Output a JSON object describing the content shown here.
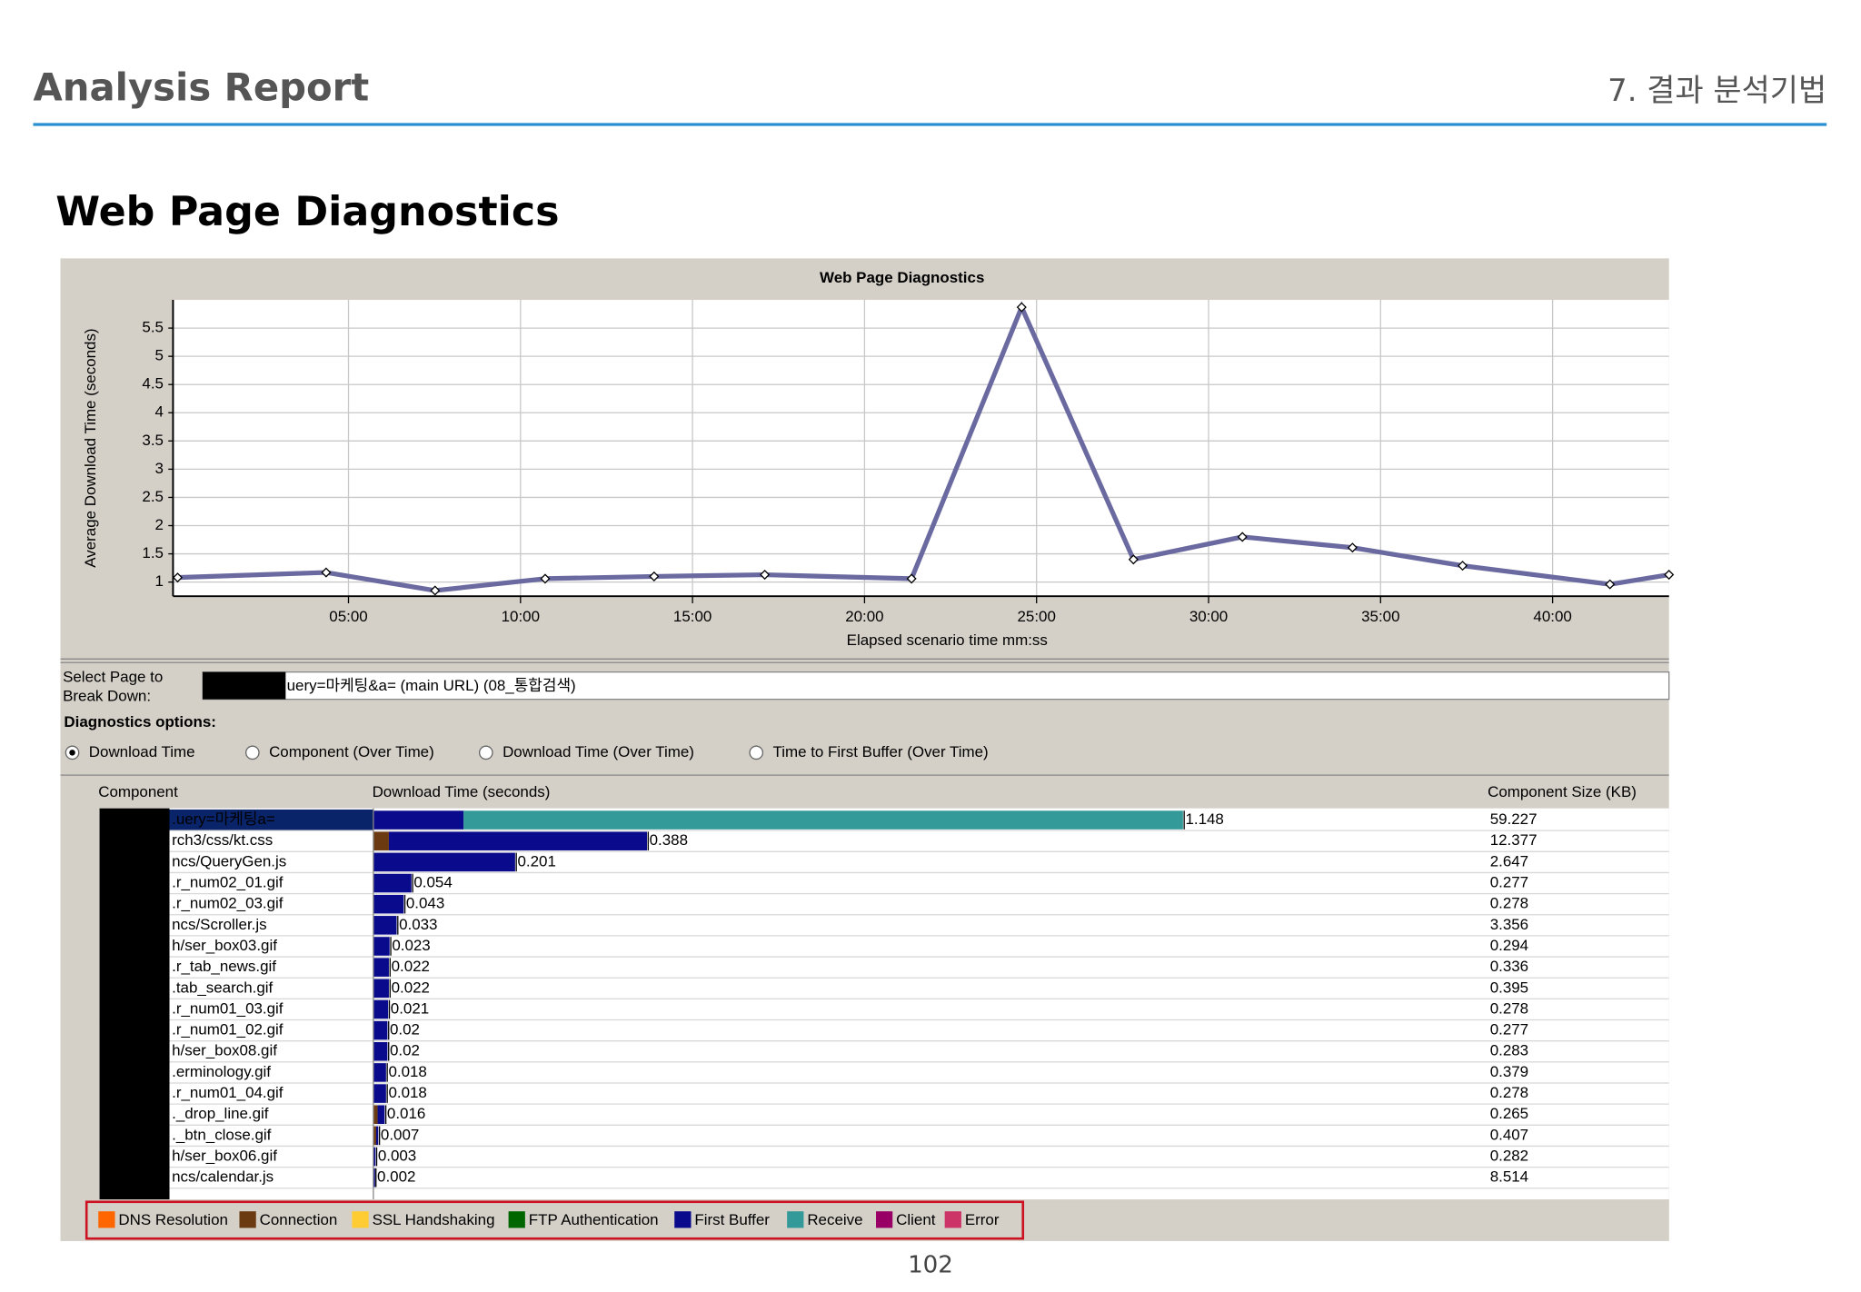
{
  "header": {
    "title": "Analysis Report",
    "section": "7. 결과 분석기법"
  },
  "heading": "Web Page Diagnostics",
  "chart_data": {
    "type": "line",
    "title": "Web Page Diagnostics",
    "x_label": "Elapsed scenario time mm:ss",
    "y_label": "Average Download Time (seconds)",
    "x": [
      2,
      261,
      451,
      643,
      833,
      1026,
      1282,
      1474,
      1669,
      1859,
      2051,
      2243,
      2500,
      2603
    ],
    "series": [
      {
        "name": "Average Download Time",
        "color": "#6a6aa0",
        "values": [
          1.08,
          1.17,
          0.85,
          1.06,
          1.1,
          1.13,
          1.06,
          5.87,
          1.4,
          1.8,
          1.61,
          1.29,
          0.96,
          1.13
        ]
      }
    ],
    "xlim": [
      -6,
      2603
    ],
    "xticks": [
      {
        "value": 300,
        "label": "05:00"
      },
      {
        "value": 600,
        "label": "10:00"
      },
      {
        "value": 900,
        "label": "15:00"
      },
      {
        "value": 1200,
        "label": "20:00"
      },
      {
        "value": 1500,
        "label": "25:00"
      },
      {
        "value": 1800,
        "label": "30:00"
      },
      {
        "value": 2100,
        "label": "35:00"
      },
      {
        "value": 2400,
        "label": "40:00"
      }
    ],
    "ylim": [
      0.75,
      6
    ],
    "yticks": [
      1,
      1.5,
      2,
      2.5,
      3,
      3.5,
      4,
      4.5,
      5,
      5.5
    ],
    "grid": true
  },
  "selector": {
    "label_line1": "Select Page to",
    "label_line2": "Break Down:",
    "value": "uery=마케팅&a= (main URL) (08_통합검색)"
  },
  "options": {
    "title": "Diagnostics options:",
    "items": [
      "Download Time",
      "Component (Over Time)",
      "Download Time (Over Time)",
      "Time to First Buffer (Over Time)"
    ],
    "selected": 0
  },
  "table": {
    "columns": [
      "Component",
      "Download Time (seconds)",
      "Component Size (KB)"
    ],
    "rows": [
      {
        "component": ".uery=마케팅a=",
        "download_time": 1.148,
        "size": 59.227,
        "segments": [
          {
            "name": "First Buffer",
            "value": 0.128
          },
          {
            "name": "Receive",
            "value": 1.02
          }
        ]
      },
      {
        "component": "rch3/css/kt.css",
        "download_time": 0.388,
        "size": 12.377,
        "segments": [
          {
            "name": "Connection",
            "value": 0.022
          },
          {
            "name": "First Buffer",
            "value": 0.366
          }
        ]
      },
      {
        "component": "ncs/QueryGen.js",
        "download_time": 0.201,
        "size": 2.647,
        "segments": [
          {
            "name": "First Buffer",
            "value": 0.201
          }
        ]
      },
      {
        "component": ".r_num02_01.gif",
        "download_time": 0.054,
        "size": 0.277,
        "segments": [
          {
            "name": "First Buffer",
            "value": 0.054
          }
        ]
      },
      {
        "component": ".r_num02_03.gif",
        "download_time": 0.043,
        "size": 0.278,
        "segments": [
          {
            "name": "First Buffer",
            "value": 0.043
          }
        ]
      },
      {
        "component": "ncs/Scroller.js",
        "download_time": 0.033,
        "size": 3.356,
        "segments": [
          {
            "name": "First Buffer",
            "value": 0.033
          }
        ]
      },
      {
        "component": "h/ser_box03.gif",
        "download_time": 0.023,
        "size": 0.294,
        "segments": [
          {
            "name": "First Buffer",
            "value": 0.023
          }
        ]
      },
      {
        "component": ".r_tab_news.gif",
        "download_time": 0.022,
        "size": 0.336,
        "segments": [
          {
            "name": "First Buffer",
            "value": 0.022
          }
        ]
      },
      {
        "component": ".tab_search.gif",
        "download_time": 0.022,
        "size": 0.395,
        "segments": [
          {
            "name": "First Buffer",
            "value": 0.022
          }
        ]
      },
      {
        "component": ".r_num01_03.gif",
        "download_time": 0.021,
        "size": 0.278,
        "segments": [
          {
            "name": "First Buffer",
            "value": 0.021
          }
        ]
      },
      {
        "component": ".r_num01_02.gif",
        "download_time": 0.02,
        "size": 0.277,
        "segments": [
          {
            "name": "First Buffer",
            "value": 0.02
          }
        ]
      },
      {
        "component": "h/ser_box08.gif",
        "download_time": 0.02,
        "size": 0.283,
        "segments": [
          {
            "name": "First Buffer",
            "value": 0.02
          }
        ]
      },
      {
        "component": ".erminology.gif",
        "download_time": 0.018,
        "size": 0.379,
        "segments": [
          {
            "name": "First Buffer",
            "value": 0.018
          }
        ]
      },
      {
        "component": ".r_num01_04.gif",
        "download_time": 0.018,
        "size": 0.278,
        "segments": [
          {
            "name": "First Buffer",
            "value": 0.018
          }
        ]
      },
      {
        "component": "._drop_line.gif",
        "download_time": 0.016,
        "size": 0.265,
        "segments": [
          {
            "name": "Connection",
            "value": 0.006
          },
          {
            "name": "First Buffer",
            "value": 0.01
          }
        ]
      },
      {
        "component": "._btn_close.gif",
        "download_time": 0.007,
        "size": 0.407,
        "segments": [
          {
            "name": "Connection",
            "value": 0.004
          },
          {
            "name": "First Buffer",
            "value": 0.003
          }
        ]
      },
      {
        "component": "h/ser_box06.gif",
        "download_time": 0.003,
        "size": 0.282,
        "segments": [
          {
            "name": "First Buffer",
            "value": 0.003
          }
        ]
      },
      {
        "component": "ncs/calendar.js",
        "download_time": 0.002,
        "size": 8.514,
        "segments": [
          {
            "name": "First Buffer",
            "value": 0.002
          }
        ]
      }
    ]
  },
  "legend": [
    {
      "name": "DNS Resolution",
      "color": "#ff6600"
    },
    {
      "name": "Connection",
      "color": "#6b3a10"
    },
    {
      "name": "SSL Handshaking",
      "color": "#ffcc33"
    },
    {
      "name": "FTP Authentication",
      "color": "#006600"
    },
    {
      "name": "First Buffer",
      "color": "#0a0a8c"
    },
    {
      "name": "Receive",
      "color": "#339999"
    },
    {
      "name": "Client",
      "color": "#990066"
    },
    {
      "name": "Error",
      "color": "#cc3366"
    }
  ],
  "page_number": "102"
}
